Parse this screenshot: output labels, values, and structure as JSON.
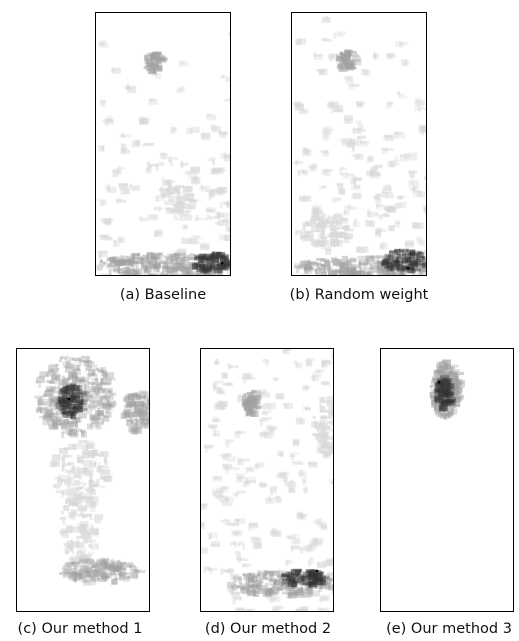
{
  "figure": {
    "panels": [
      {
        "id": "a",
        "caption": "(a) Baseline"
      },
      {
        "id": "b",
        "caption": "(b) Random weight"
      },
      {
        "id": "c",
        "caption": "(c) Our method 1"
      },
      {
        "id": "d",
        "caption": "(d) Our method 2"
      },
      {
        "id": "e",
        "caption": "(e) Our method 3"
      }
    ]
  },
  "colors": {
    "heat_light": "#d8d8d8",
    "heat_mid": "#a0a0a0",
    "heat_dark": "#333333",
    "border": "#000000"
  }
}
